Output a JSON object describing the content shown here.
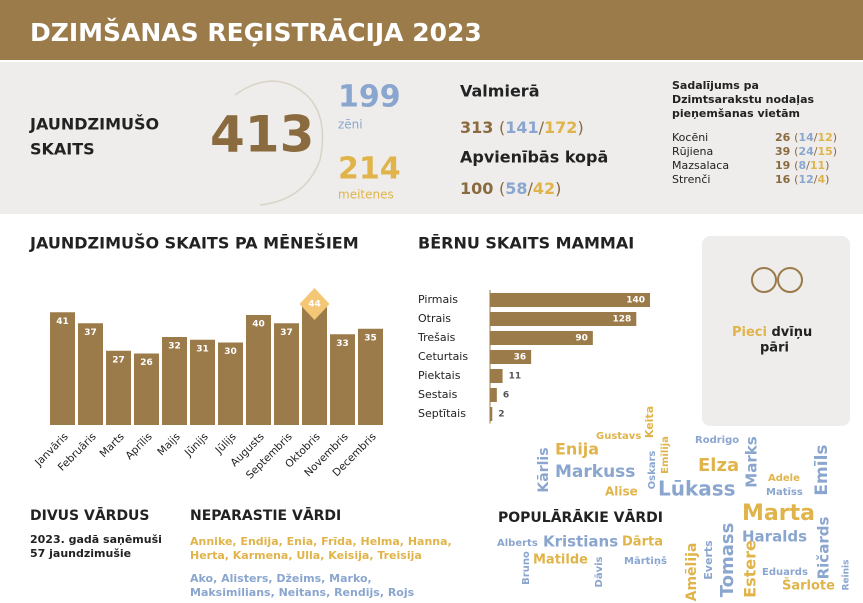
{
  "header": {
    "title": "DZIMŠANAS REĢISTRĀCIJA 2023"
  },
  "punctuation": {
    "open": "(",
    "separator": "/",
    "close": ")"
  },
  "summary": {
    "label": [
      "JAUNDZIMUŠO",
      "SKAITS"
    ],
    "total": 413,
    "boys": 199,
    "boys_label": "zēni",
    "girls": 214,
    "girls_label": "meitenes"
  },
  "valmiera": {
    "title": "Valmierā",
    "total": 313,
    "boys": 141,
    "girls": 172
  },
  "unions": {
    "title": "Apvienībās kopā",
    "total": 100,
    "boys": 58,
    "girls": 42
  },
  "offices": {
    "title": [
      "Sadalījums pa",
      "Dzimtsarakstu nodaļas",
      "pieņemšanas vietām"
    ],
    "rows": [
      {
        "name": "Kocēni",
        "total": 26,
        "boys": 14,
        "girls": 12
      },
      {
        "name": "Rūjiena",
        "total": 39,
        "boys": 24,
        "girls": 15
      },
      {
        "name": "Mazsalaca",
        "total": 19,
        "boys": 8,
        "girls": 11
      },
      {
        "name": "Strenči",
        "total": 16,
        "boys": 12,
        "girls": 4
      }
    ]
  },
  "chart_data": [
    {
      "type": "bar",
      "title": "JAUNDZIMUŠO SKAITS PA MĒNEŠIEM",
      "color": "#9c7b4b",
      "highlight_color": "#f4c777",
      "categories": [
        "Janvāris",
        "Februāris",
        "Marts",
        "Aprīlis",
        "Maijs",
        "Jūnijs",
        "Jūlijs",
        "Augusts",
        "Septembris",
        "Oktobris",
        "Novembris",
        "Decembris"
      ],
      "values": [
        41,
        37,
        27,
        26,
        32,
        31,
        30,
        40,
        37,
        44,
        33,
        35
      ]
    },
    {
      "type": "hbar",
      "title": "BĒRNU SKAITS MAMMAI",
      "color": "#9c7b4b",
      "categories": [
        "Pirmais",
        "Otrais",
        "Trešais",
        "Ceturtais",
        "Piektais",
        "Sestais",
        "Septītais"
      ],
      "values": [
        140,
        128,
        90,
        36,
        11,
        6,
        2
      ]
    }
  ],
  "twins": {
    "highlight": "Pieci",
    "text": [
      "dvīņu",
      "pāri"
    ]
  },
  "double_names": {
    "title": "DIVUS VĀRDUS",
    "lines": [
      "2023. gadā saņēmuši",
      "57 jaundzimušie"
    ]
  },
  "unusual_names": {
    "title": "NEPARASTIE VĀRDI",
    "gold_lines": [
      "Annike, Endija, Enia, Frīda, Helma, Hanna,",
      "Herta, Karmena, Ulla, Keisija, Treisija"
    ],
    "blue_lines": [
      "Ako, Alisters, Džeims, Marko,",
      "Maksimilians, Neitans, Rendijs, Rojs"
    ]
  },
  "popular_names": {
    "title": "POPULĀRĀKIE VĀRDI",
    "names": [
      {
        "name": "Gustavs",
        "color": "#e0b44a"
      },
      {
        "name": "Keita",
        "color": "#e0b44a"
      },
      {
        "name": "Rodrigo",
        "color": "#8aa6cf"
      },
      {
        "name": "Kārlis",
        "color": "#8aa6cf"
      },
      {
        "name": "Enija",
        "color": "#e0b44a"
      },
      {
        "name": "Emīlija",
        "color": "#e0b44a"
      },
      {
        "name": "Markuss",
        "color": "#8aa6cf"
      },
      {
        "name": "Oskars",
        "color": "#8aa6cf"
      },
      {
        "name": "Elza",
        "color": "#e0b44a"
      },
      {
        "name": "Marks",
        "color": "#8aa6cf"
      },
      {
        "name": "Adele",
        "color": "#e0b44a"
      },
      {
        "name": "Emīls",
        "color": "#8aa6cf"
      },
      {
        "name": "Alise",
        "color": "#e0b44a"
      },
      {
        "name": "Lūkass",
        "color": "#8aa6cf"
      },
      {
        "name": "Matīss",
        "color": "#8aa6cf"
      },
      {
        "name": "Marta",
        "color": "#e0b44a"
      },
      {
        "name": "Alberts",
        "color": "#8aa6cf"
      },
      {
        "name": "Kristians",
        "color": "#8aa6cf"
      },
      {
        "name": "Dārta",
        "color": "#e0b44a"
      },
      {
        "name": "Haralds",
        "color": "#8aa6cf"
      },
      {
        "name": "Ričards",
        "color": "#8aa6cf"
      },
      {
        "name": "Bruno",
        "color": "#8aa6cf"
      },
      {
        "name": "Matilde",
        "color": "#e0b44a"
      },
      {
        "name": "Dāvis",
        "color": "#8aa6cf"
      },
      {
        "name": "Mārtiņš",
        "color": "#8aa6cf"
      },
      {
        "name": "Amēlija",
        "color": "#e0b44a"
      },
      {
        "name": "Everts",
        "color": "#8aa6cf"
      },
      {
        "name": "Tomass",
        "color": "#8aa6cf"
      },
      {
        "name": "Estere",
        "color": "#e0b44a"
      },
      {
        "name": "Eduards",
        "color": "#8aa6cf"
      },
      {
        "name": "Šarlote",
        "color": "#e0b44a"
      },
      {
        "name": "Reinis",
        "color": "#8aa6cf"
      }
    ]
  }
}
